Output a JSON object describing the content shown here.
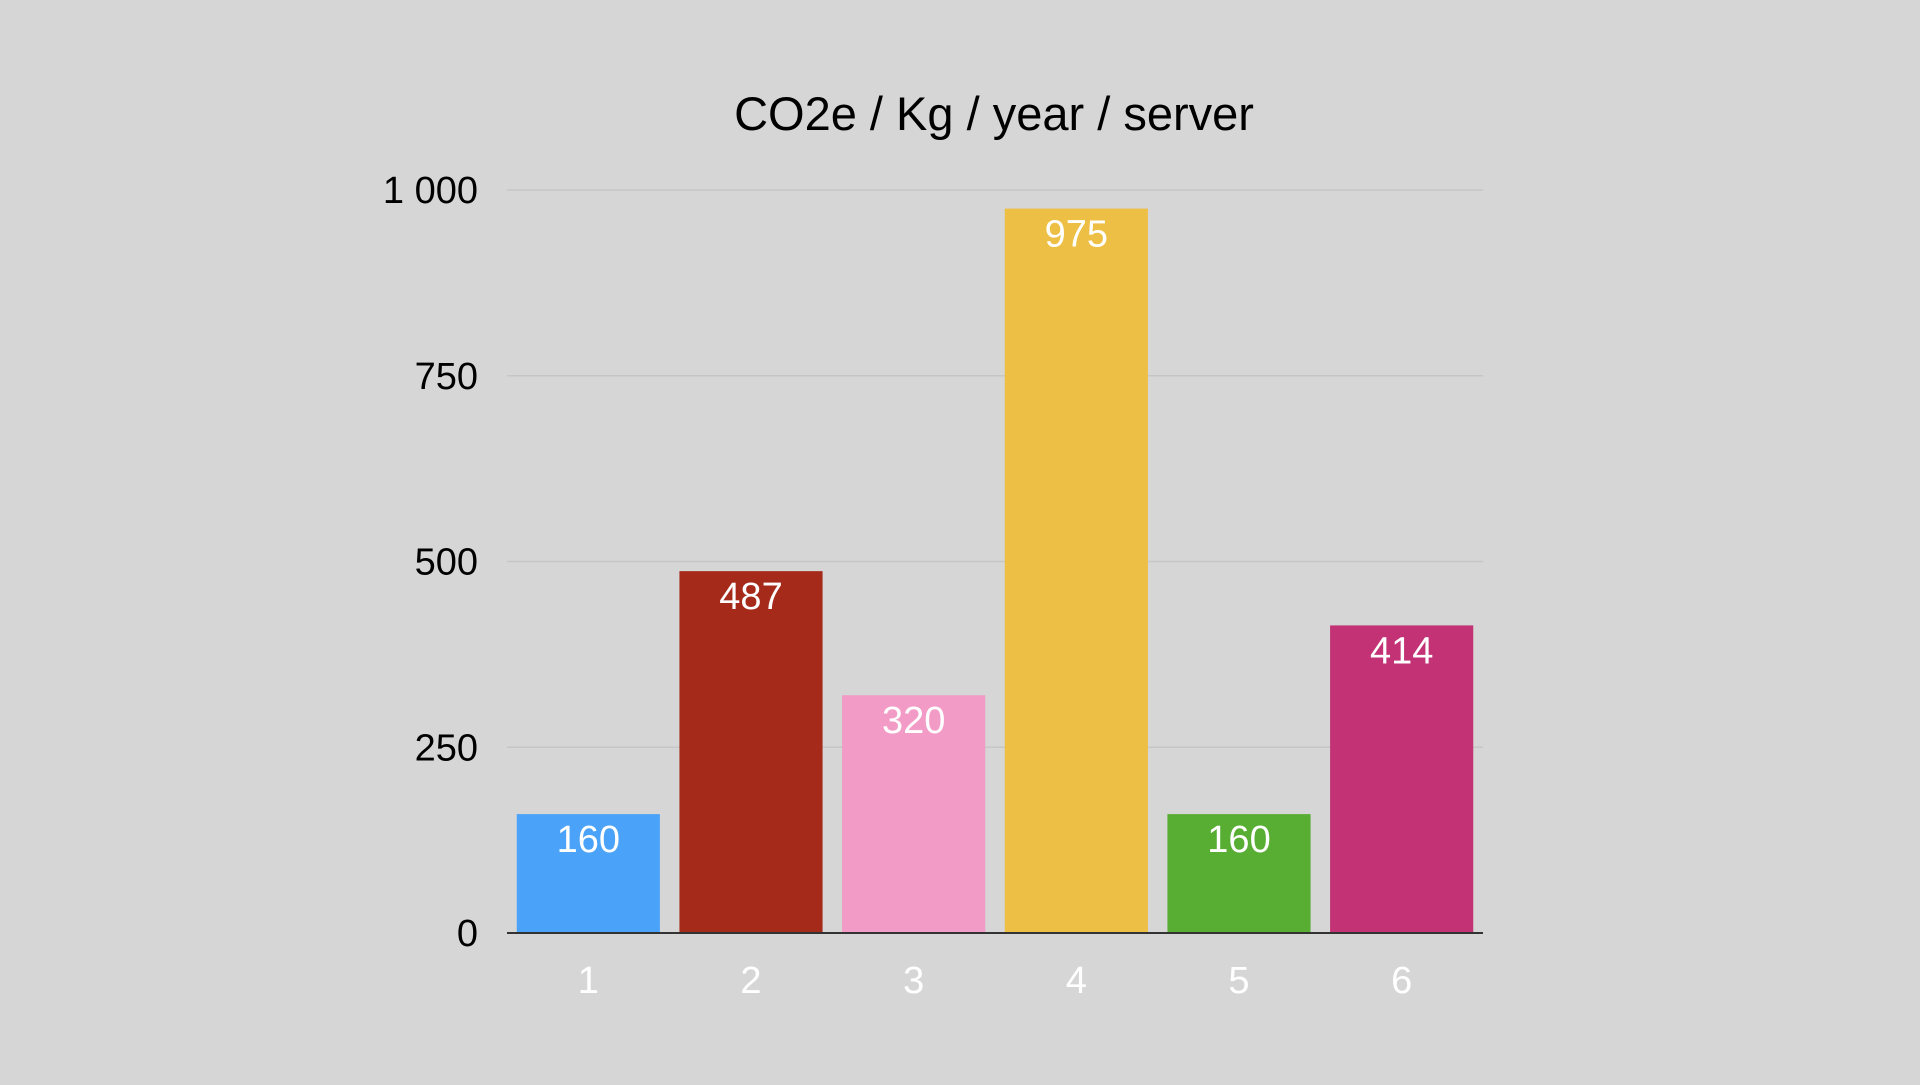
{
  "chart_data": {
    "type": "bar",
    "title": "CO2e / Kg / year / server",
    "xlabel": "",
    "ylabel": "",
    "categories": [
      "1",
      "2",
      "3",
      "4",
      "5",
      "6"
    ],
    "values": [
      160,
      487,
      320,
      975,
      160,
      414
    ],
    "value_labels": [
      "160",
      "487",
      "320",
      "975",
      "160",
      "414"
    ],
    "colors": [
      "#4aa3f8",
      "#a52a19",
      "#f29bc6",
      "#eebf45",
      "#57ae33",
      "#c23275"
    ],
    "ylim": [
      0,
      1000
    ],
    "yticks": [
      0,
      250,
      500,
      750,
      1000
    ],
    "ytick_labels": [
      "0",
      "250",
      "500",
      "750",
      "1 000"
    ],
    "grid": true,
    "legend": "none"
  }
}
